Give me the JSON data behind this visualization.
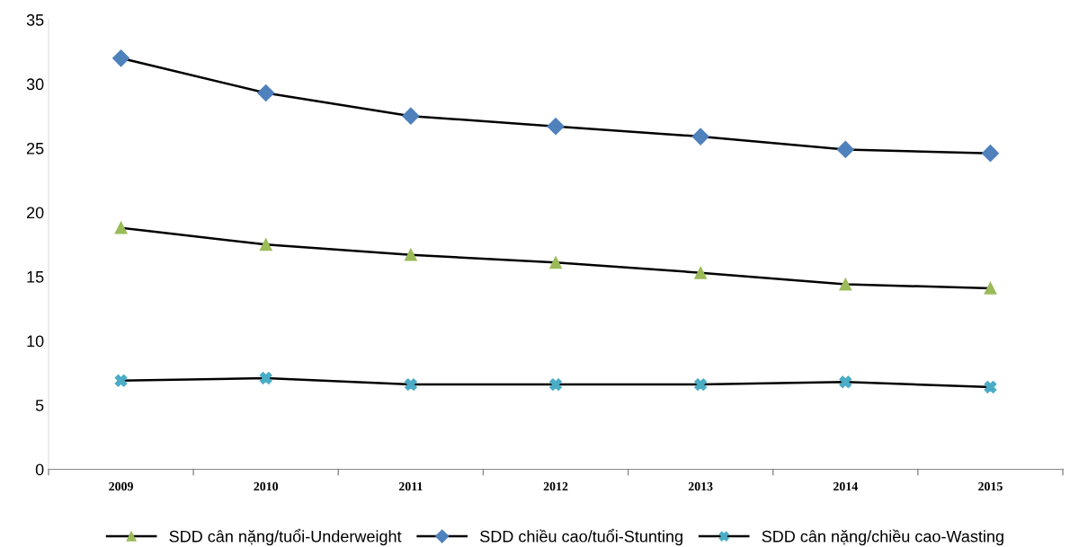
{
  "chart_data": {
    "type": "line",
    "categories": [
      "2009",
      "2010",
      "2011",
      "2012",
      "2013",
      "2014",
      "2015"
    ],
    "series": [
      {
        "name": "SDD cân nặng/tuổi-Underweight",
        "color": "#9bbb59",
        "marker": "triangle",
        "values": [
          18.8,
          17.5,
          16.7,
          16.1,
          15.3,
          14.4,
          14.1
        ]
      },
      {
        "name": "SDD chiều cao/tuổi-Stunting",
        "color": "#4f81bd",
        "marker": "diamond",
        "values": [
          32.0,
          29.3,
          27.5,
          26.7,
          25.9,
          24.9,
          24.6
        ]
      },
      {
        "name": "SDD cân nặng/chiều cao-Wasting",
        "color": "#4bacc6",
        "marker": "cross",
        "values": [
          6.9,
          7.1,
          6.6,
          6.6,
          6.6,
          6.8,
          6.4
        ]
      }
    ],
    "ylim": [
      0,
      35
    ],
    "yticks": [
      0,
      5,
      10,
      15,
      20,
      25,
      30,
      35
    ],
    "grid": false,
    "legend": "bottom",
    "line_style": "solid"
  }
}
